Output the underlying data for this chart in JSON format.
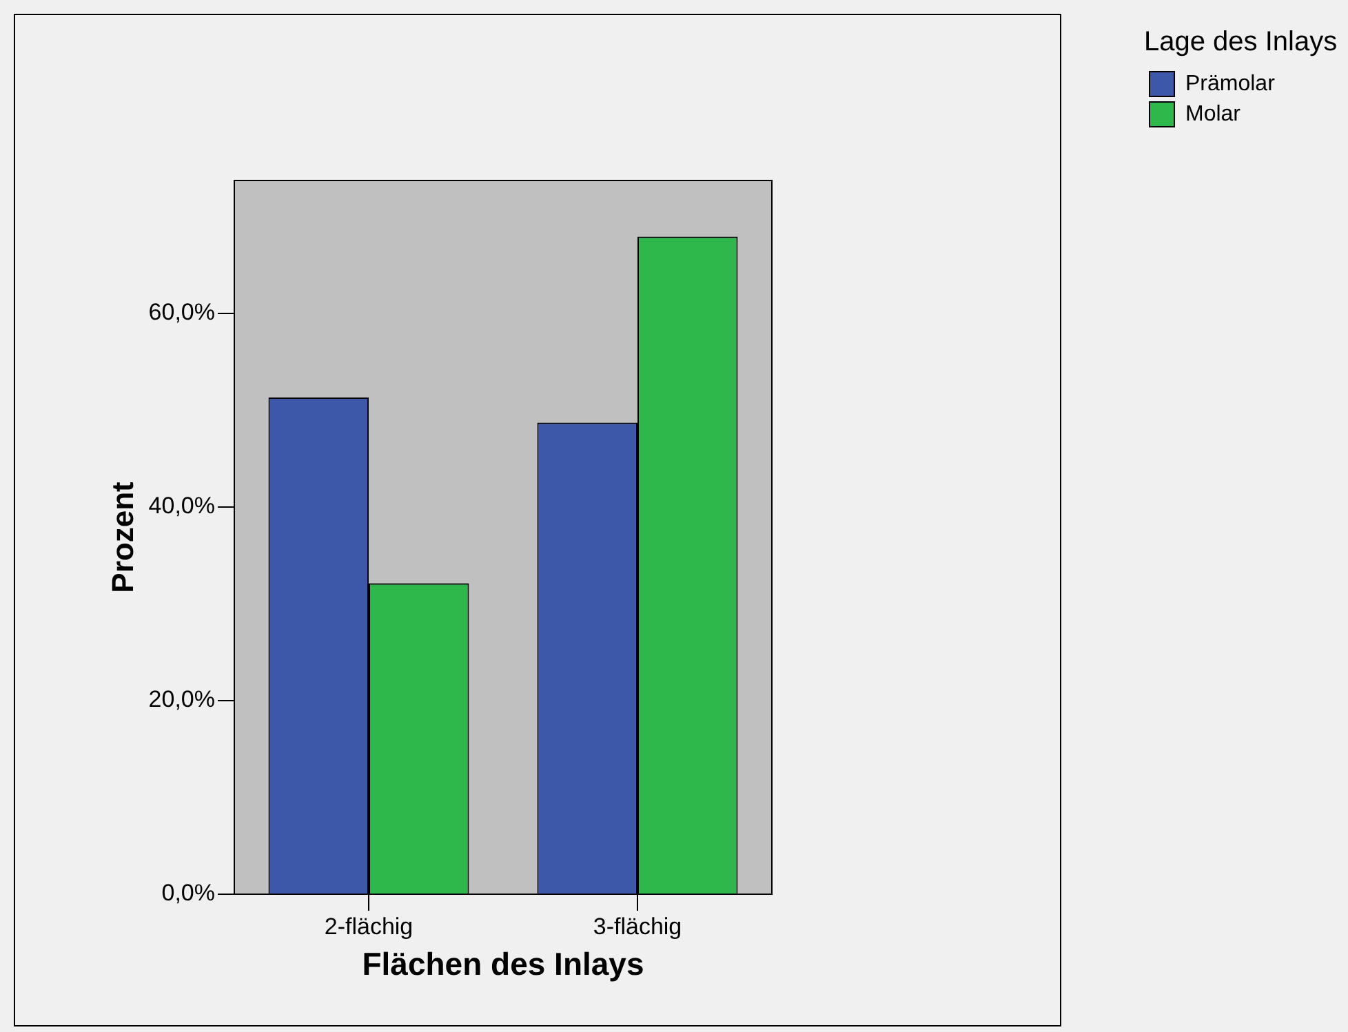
{
  "chart_data": {
    "type": "bar",
    "xlabel": "Flächen des Inlays",
    "ylabel": "Prozent",
    "legend_title": "Lage des Inlays",
    "categories": [
      "2-flächig",
      "3-flächig"
    ],
    "series": [
      {
        "name": "Prämolar",
        "color": "#3d57a9",
        "values": [
          51.3,
          48.7
        ]
      },
      {
        "name": "Molar",
        "color": "#2eb84b",
        "values": [
          32.1,
          67.9
        ]
      }
    ],
    "ylim": [
      0,
      73.7
    ],
    "yticks": [
      {
        "value": 0,
        "label": "0,0%"
      },
      {
        "value": 20,
        "label": "20,0%"
      },
      {
        "value": 40,
        "label": "40,0%"
      },
      {
        "value": 60,
        "label": "60,0%"
      }
    ],
    "grid": false,
    "legend": "top right"
  }
}
